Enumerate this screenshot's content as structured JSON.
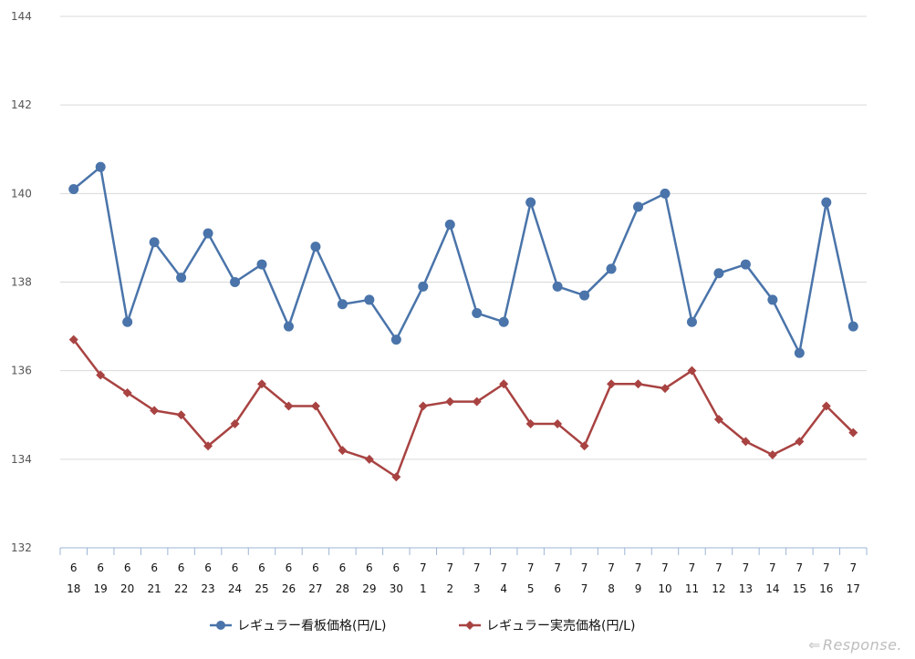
{
  "chart_data": {
    "type": "line",
    "categories": [
      [
        "6",
        "18"
      ],
      [
        "6",
        "19"
      ],
      [
        "6",
        "20"
      ],
      [
        "6",
        "21"
      ],
      [
        "6",
        "22"
      ],
      [
        "6",
        "23"
      ],
      [
        "6",
        "24"
      ],
      [
        "6",
        "25"
      ],
      [
        "6",
        "26"
      ],
      [
        "6",
        "27"
      ],
      [
        "6",
        "28"
      ],
      [
        "6",
        "29"
      ],
      [
        "6",
        "30"
      ],
      [
        "7",
        "1"
      ],
      [
        "7",
        "2"
      ],
      [
        "7",
        "3"
      ],
      [
        "7",
        "4"
      ],
      [
        "7",
        "5"
      ],
      [
        "7",
        "6"
      ],
      [
        "7",
        "7"
      ],
      [
        "7",
        "8"
      ],
      [
        "7",
        "9"
      ],
      [
        "7",
        "10"
      ],
      [
        "7",
        "11"
      ],
      [
        "7",
        "12"
      ],
      [
        "7",
        "13"
      ],
      [
        "7",
        "14"
      ],
      [
        "7",
        "15"
      ],
      [
        "7",
        "16"
      ],
      [
        "7",
        "17"
      ]
    ],
    "series": [
      {
        "name": "レギュラー看板価格(円/L)",
        "color": "#4a74aa",
        "marker": "circle",
        "values": [
          140.1,
          140.6,
          137.1,
          138.9,
          138.1,
          139.1,
          138.0,
          138.4,
          137.0,
          138.8,
          137.5,
          137.6,
          136.7,
          137.9,
          139.3,
          137.3,
          137.1,
          139.8,
          137.9,
          137.7,
          138.3,
          139.7,
          140.0,
          137.1,
          138.2,
          138.4,
          137.6,
          136.4,
          139.8,
          137.0
        ]
      },
      {
        "name": "レギュラー実売価格(円/L)",
        "color": "#a84342",
        "marker": "diamond",
        "values": [
          136.7,
          135.9,
          135.5,
          135.1,
          135.0,
          134.3,
          134.8,
          135.7,
          135.2,
          135.2,
          134.2,
          134.0,
          133.6,
          135.2,
          135.3,
          135.3,
          135.7,
          134.8,
          134.8,
          134.3,
          135.7,
          135.7,
          135.6,
          136.0,
          134.9,
          134.4,
          134.1,
          134.4,
          135.2,
          134.6
        ]
      }
    ],
    "yticks": [
      "144",
      "142",
      "140",
      "138",
      "136",
      "134",
      "132"
    ],
    "ylim": [
      132,
      144
    ],
    "grid": true,
    "legend": "bottom"
  },
  "watermark": "Response."
}
